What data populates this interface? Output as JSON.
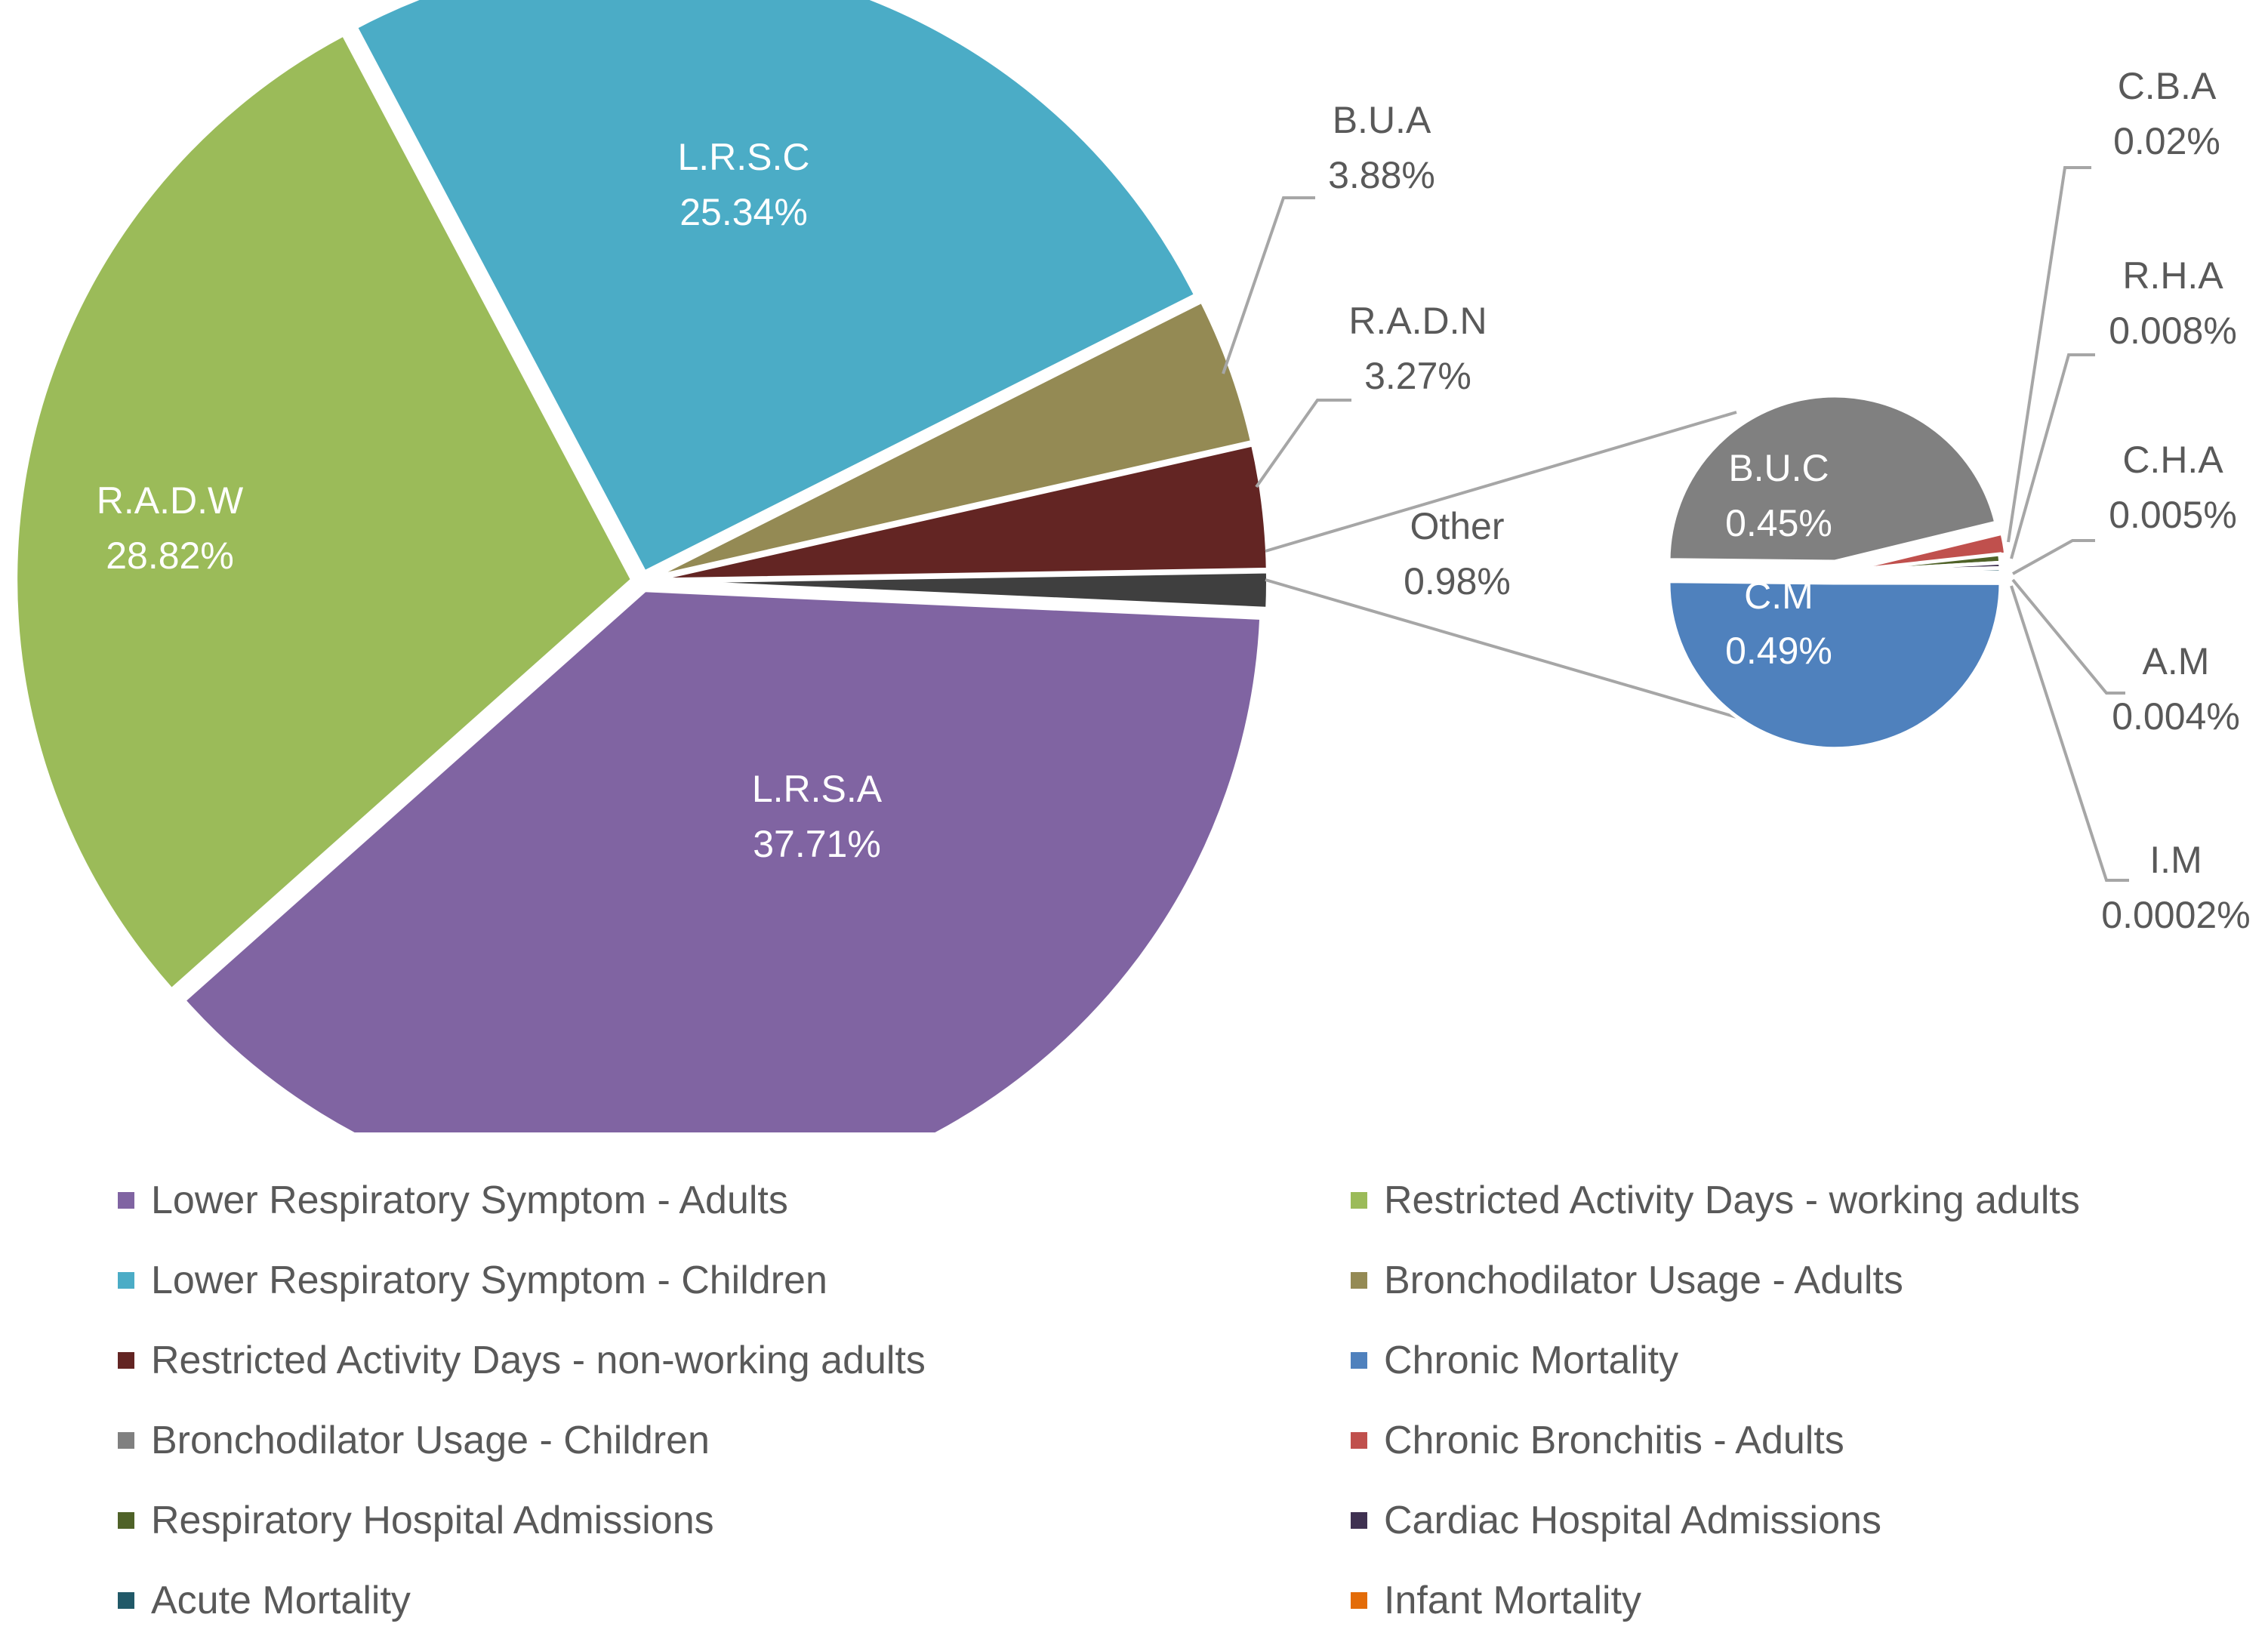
{
  "chart_data": {
    "type": "pie",
    "variant": "pie-of-pie",
    "main_pie": {
      "slices": [
        {
          "key": "LRSA",
          "label": "L.R.S.A",
          "value_text": "37.71%",
          "value": 37.71,
          "color": "#8064a2",
          "label_style": "inside"
        },
        {
          "key": "RADW",
          "label": "R.A.D.W",
          "value_text": "28.82%",
          "value": 28.82,
          "color": "#9bbb59",
          "label_style": "inside"
        },
        {
          "key": "LRSC",
          "label": "L.R.S.C",
          "value_text": "25.34%",
          "value": 25.34,
          "color": "#4bacc6",
          "label_style": "inside"
        },
        {
          "key": "BUA",
          "label": "B.U.A",
          "value_text": "3.88%",
          "value": 3.88,
          "color": "#948a54",
          "label_style": "outside"
        },
        {
          "key": "RADN",
          "label": "R.A.D.N",
          "value_text": "3.27%",
          "value": 3.27,
          "color": "#632523",
          "label_style": "outside"
        },
        {
          "key": "Other",
          "label": "Other",
          "value_text": "0.98%",
          "value": 0.98,
          "color": "#3f3f3f",
          "label_style": "outside"
        }
      ]
    },
    "secondary_pie": {
      "slices": [
        {
          "key": "BUC",
          "label": "B.U.C",
          "value_text": "0.45%",
          "value": 0.45,
          "color": "#808080",
          "label_style": "inside"
        },
        {
          "key": "CBA",
          "label": "C.B.A",
          "value_text": "0.02%",
          "value": 0.02,
          "color": "#c0504d",
          "label_style": "outside"
        },
        {
          "key": "RHA",
          "label": "R.H.A",
          "value_text": "0.008%",
          "value": 0.008,
          "color": "#4f6228",
          "label_style": "outside"
        },
        {
          "key": "CHA",
          "label": "C.H.A",
          "value_text": "0.005%",
          "value": 0.005,
          "color": "#3f3151",
          "label_style": "outside"
        },
        {
          "key": "AM",
          "label": "A.M",
          "value_text": "0.004%",
          "value": 0.004,
          "color": "#215968",
          "label_style": "outside"
        },
        {
          "key": "IM",
          "label": "I.M",
          "value_text": "0.0002%",
          "value": 0.0002,
          "color": "#e36c09",
          "label_style": "outside"
        },
        {
          "key": "CM",
          "label": "C.M",
          "value_text": "0.49%",
          "value": 0.49,
          "color": "#4f81bd",
          "label_style": "inside"
        }
      ]
    },
    "legend": [
      {
        "label": "Lower Respiratory Symptom - Adults",
        "color": "#8064a2"
      },
      {
        "label": "Restricted Activity Days - working adults",
        "color": "#9bbb59"
      },
      {
        "label": "Lower Respiratory Symptom - Children",
        "color": "#4bacc6"
      },
      {
        "label": "Bronchodilator Usage - Adults",
        "color": "#948a54"
      },
      {
        "label": "Restricted Activity Days - non-working adults",
        "color": "#632523"
      },
      {
        "label": "Chronic Mortality",
        "color": "#4f81bd"
      },
      {
        "label": "Bronchodilator Usage - Children",
        "color": "#808080"
      },
      {
        "label": "Chronic Bronchitis - Adults",
        "color": "#c0504d"
      },
      {
        "label": "Respiratory Hospital Admissions",
        "color": "#4f6228"
      },
      {
        "label": "Cardiac Hospital Admissions",
        "color": "#3f3151"
      },
      {
        "label": "Acute Mortality",
        "color": "#215968"
      },
      {
        "label": "Infant Mortality",
        "color": "#e36c09"
      }
    ],
    "legend_position": "bottom"
  }
}
